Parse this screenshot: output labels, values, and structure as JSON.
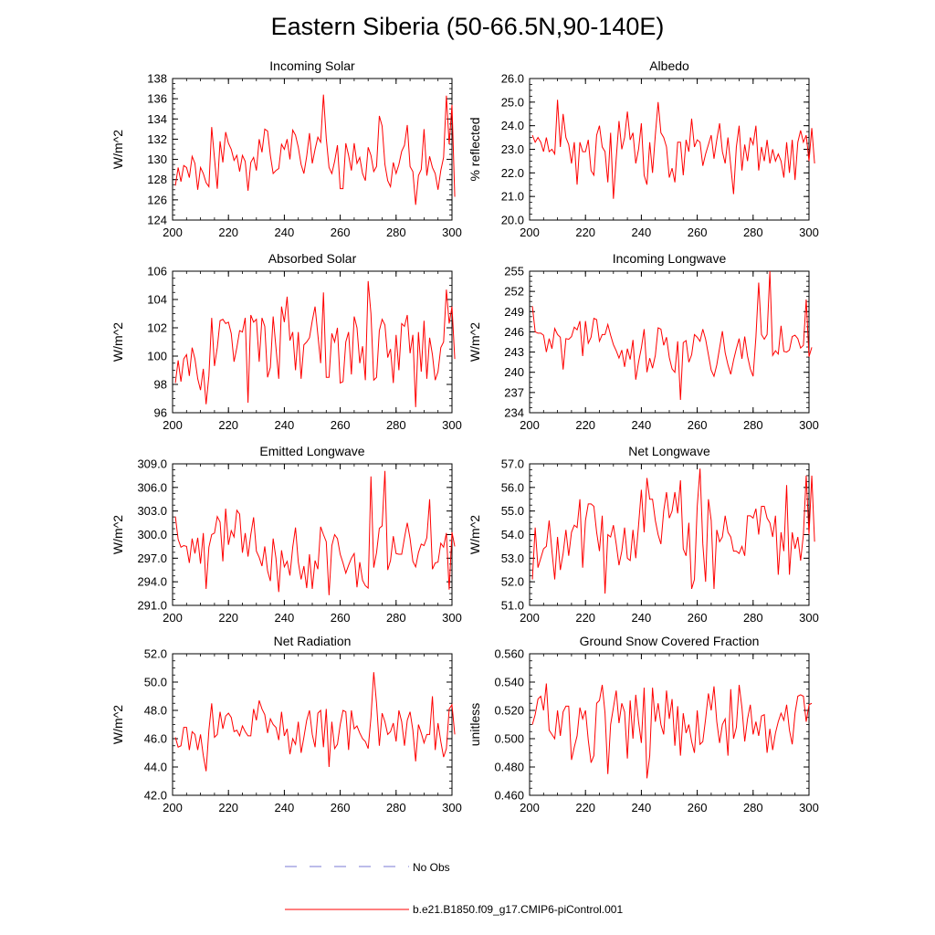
{
  "title": "Eastern Siberia (50-66.5N,90-140E)",
  "colors": {
    "model": "#ff0000",
    "obs": "#7a7ad6",
    "axis": "#000000"
  },
  "legend": {
    "obs_label": "No Obs",
    "model_label": "b.e21.B1850.f09_g17.CMIP6-piControl.001"
  },
  "chart_data": [
    {
      "type": "line",
      "title": "Incoming Solar",
      "ylabel": "W/m^2",
      "xlim": [
        200,
        300
      ],
      "xticks": [
        "200",
        "220",
        "240",
        "260",
        "280",
        "300"
      ],
      "ylim": [
        124,
        138
      ],
      "yticks": [
        "124",
        "126",
        "128",
        "130",
        "132",
        "134",
        "136",
        "138"
      ],
      "x_start": 201,
      "values": [
        127.4,
        129.2,
        127.8,
        129.4,
        129.2,
        128.2,
        130.3,
        129.6,
        127.0,
        129.2,
        128.6,
        127.7,
        127.3,
        133.2,
        130.1,
        127.1,
        131.8,
        129.7,
        132.7,
        131.6,
        131.0,
        129.9,
        130.4,
        128.8,
        130.4,
        129.8,
        126.9,
        129.7,
        130.2,
        128.9,
        132.0,
        130.7,
        133.0,
        132.8,
        130.4,
        128.6,
        128.9,
        129.1,
        131.5,
        131.0,
        132.0,
        130.0,
        132.9,
        132.4,
        131.2,
        129.5,
        128.6,
        130.3,
        132.6,
        129.6,
        131.0,
        132.2,
        131.7,
        136.4,
        132.1,
        129.2,
        128.6,
        129.8,
        131.4,
        127.1,
        127.1,
        131.6,
        130.4,
        128.9,
        131.6,
        129.6,
        130.2,
        128.6,
        127.9,
        131.2,
        130.4,
        128.8,
        129.3,
        134.3,
        133.3,
        129.5,
        127.9,
        127.3,
        129.7,
        128.6,
        129.5,
        130.8,
        131.4,
        133.4,
        129.3,
        128.8,
        125.5,
        128.4,
        129.0,
        133.0,
        128.4,
        130.3,
        129.2,
        128.6,
        127.0,
        128.9,
        130.2,
        136.3,
        131.5,
        135.4,
        126.3
      ]
    },
    {
      "type": "line",
      "title": "Albedo",
      "ylabel": "% reflected",
      "xlim": [
        200,
        300
      ],
      "xticks": [
        "200",
        "220",
        "240",
        "260",
        "280",
        "300"
      ],
      "ylim": [
        20.0,
        26.0
      ],
      "yticks": [
        "20.0",
        "21.0",
        "22.0",
        "23.0",
        "24.0",
        "25.0",
        "26.0"
      ],
      "x_start": 201,
      "values": [
        23.6,
        23.3,
        23.5,
        23.3,
        22.9,
        23.5,
        22.9,
        23.0,
        22.8,
        25.1,
        23.1,
        24.5,
        23.5,
        23.2,
        22.4,
        23.3,
        21.5,
        23.3,
        22.9,
        22.9,
        23.4,
        22.1,
        21.9,
        23.6,
        24.0,
        23.1,
        22.9,
        21.6,
        23.7,
        20.9,
        22.6,
        24.2,
        23.0,
        23.5,
        24.6,
        23.4,
        23.7,
        22.4,
        23.0,
        24.1,
        21.9,
        21.5,
        23.3,
        22.0,
        23.6,
        25.0,
        23.7,
        23.5,
        23.1,
        21.8,
        22.2,
        21.6,
        23.3,
        23.3,
        21.9,
        23.4,
        22.9,
        24.3,
        23.1,
        23.4,
        23.3,
        22.3,
        22.8,
        23.2,
        23.6,
        22.6,
        23.4,
        24.1,
        22.9,
        22.4,
        23.5,
        22.3,
        21.1,
        23.1,
        24.0,
        22.1,
        23.2,
        22.5,
        23.5,
        23.2,
        24.0,
        22.1,
        23.1,
        22.5,
        23.4,
        22.4,
        23.0,
        22.5,
        22.8,
        22.5,
        21.8,
        23.3,
        22.0,
        23.4,
        21.7,
        23.3,
        23.8,
        23.3,
        23.6,
        22.5,
        23.9,
        22.4
      ]
    },
    {
      "type": "line",
      "title": "Absorbed Solar",
      "ylabel": "W/m^2",
      "xlim": [
        200,
        300
      ],
      "xticks": [
        "200",
        "220",
        "240",
        "260",
        "280",
        "300"
      ],
      "ylim": [
        96,
        106
      ],
      "yticks": [
        "96",
        "98",
        "100",
        "102",
        "104",
        "106"
      ],
      "x_start": 201,
      "values": [
        98.1,
        99.7,
        98.2,
        99.8,
        100.1,
        98.6,
        100.6,
        99.8,
        98.4,
        97.6,
        99.1,
        96.6,
        98.6,
        102.7,
        99.3,
        100.6,
        102.5,
        102.6,
        102.3,
        102.4,
        101.6,
        99.6,
        100.6,
        101.8,
        101.7,
        102.7,
        96.7,
        102.9,
        102.4,
        102.6,
        99.6,
        102.7,
        102.1,
        98.5,
        99.2,
        102.8,
        100.6,
        98.4,
        103.5,
        102.4,
        104.2,
        101.1,
        101.7,
        99.0,
        101.7,
        98.4,
        100.8,
        101.0,
        101.3,
        102.5,
        103.5,
        101.5,
        99.5,
        104.5,
        98.5,
        98.5,
        101.6,
        101.0,
        102.0,
        98.1,
        98.2,
        101.0,
        101.7,
        98.7,
        102.8,
        102.0,
        99.5,
        100.7,
        98.3,
        105.3,
        103.0,
        98.3,
        98.5,
        101.8,
        102.6,
        102.2,
        99.9,
        100.5,
        98.1,
        101.5,
        99.0,
        102.3,
        102.1,
        102.9,
        100.2,
        101.5,
        96.4,
        101.7,
        98.9,
        102.5,
        98.4,
        101.3,
        100.1,
        98.3,
        98.9,
        100.6,
        101.0,
        104.7,
        102.3,
        103.5,
        99.8
      ]
    },
    {
      "type": "line",
      "title": "Incoming Longwave",
      "ylabel": "W/m^2",
      "xlim": [
        200,
        300
      ],
      "xticks": [
        "200",
        "220",
        "240",
        "260",
        "280",
        "300"
      ],
      "ylim": [
        234,
        255
      ],
      "yticks": [
        "234",
        "237",
        "240",
        "243",
        "246",
        "249",
        "252",
        "255"
      ],
      "x_start": 201,
      "values": [
        249.8,
        246.0,
        245.8,
        245.8,
        245.5,
        243.0,
        245.0,
        243.5,
        246.5,
        245.6,
        245.2,
        240.4,
        245.0,
        244.9,
        245.3,
        246.7,
        246.3,
        247.6,
        242.4,
        247.6,
        244.3,
        245.2,
        248.0,
        247.8,
        244.6,
        245.6,
        245.6,
        247.1,
        245.5,
        244.1,
        243.2,
        242.1,
        243.3,
        240.8,
        243.5,
        241.9,
        244.8,
        238.9,
        241.5,
        243.6,
        246.4,
        240.0,
        242.1,
        240.6,
        242.5,
        246.6,
        246.4,
        244.0,
        245.2,
        242.2,
        240.5,
        240.0,
        244.6,
        235.9,
        244.4,
        244.7,
        241.5,
        242.6,
        245.6,
        245.2,
        244.6,
        246.4,
        244.9,
        242.6,
        240.3,
        239.4,
        241.1,
        243.6,
        246.1,
        242.9,
        241.1,
        239.7,
        241.8,
        243.5,
        245.0,
        242.0,
        245.3,
        242.4,
        240.5,
        239.4,
        245.2,
        253.3,
        245.6,
        244.9,
        245.6,
        255.0,
        242.5,
        243.2,
        242.7,
        246.9,
        243.1,
        243.0,
        243.3,
        245.3,
        245.5,
        245.0,
        243.6,
        244.0,
        250.8,
        242.3,
        243.7
      ]
    },
    {
      "type": "line",
      "title": "Emitted Longwave",
      "ylabel": "W/m^2",
      "xlim": [
        200,
        300
      ],
      "xticks": [
        "200",
        "220",
        "240",
        "260",
        "280",
        "300"
      ],
      "ylim": [
        291.0,
        309.0
      ],
      "yticks": [
        "291.0",
        "294.0",
        "297.0",
        "300.0",
        "303.0",
        "306.0",
        "309.0"
      ],
      "x_start": 201,
      "values": [
        302.3,
        299.4,
        298.4,
        298.6,
        298.5,
        296.4,
        299.5,
        297.6,
        299.6,
        296.3,
        300.2,
        293.1,
        298.4,
        300.0,
        300.2,
        302.3,
        301.6,
        296.6,
        303.3,
        298.7,
        300.5,
        299.7,
        303.1,
        302.6,
        297.7,
        300.2,
        297.2,
        300.0,
        302.2,
        297.9,
        297.1,
        296.0,
        298.5,
        295.4,
        294.1,
        299.5,
        297.0,
        292.7,
        298.0,
        295.9,
        296.6,
        294.8,
        298.4,
        300.9,
        296.5,
        294.3,
        296.0,
        293.2,
        297.5,
        293.1,
        296.7,
        295.6,
        301.0,
        300.0,
        299.1,
        292.3,
        298.6,
        300.0,
        299.5,
        297.5,
        296.4,
        295.1,
        296.1,
        297.0,
        297.6,
        293.3,
        296.5,
        294.2,
        293.5,
        293.2,
        307.4,
        295.8,
        297.7,
        300.8,
        301.1,
        308.1,
        295.5,
        296.7,
        299.8,
        297.6,
        297.5,
        297.5,
        299.6,
        301.5,
        299.5,
        296.6,
        295.9,
        297.7,
        298.8,
        298.6,
        299.6,
        304.5,
        295.6,
        296.4,
        296.5,
        298.9,
        298.4,
        300.2,
        293.0,
        300.3,
        298.5
      ]
    },
    {
      "type": "line",
      "title": "Net Longwave",
      "ylabel": "W/m^2",
      "xlim": [
        200,
        300
      ],
      "xticks": [
        "200",
        "220",
        "240",
        "260",
        "280",
        "300"
      ],
      "ylim": [
        51.0,
        57.0
      ],
      "yticks": [
        "51.0",
        "52.0",
        "53.0",
        "54.0",
        "55.0",
        "56.0",
        "57.0"
      ],
      "x_start": 201,
      "values": [
        52.1,
        54.3,
        52.6,
        53.0,
        53.4,
        53.5,
        54.6,
        53.3,
        52.1,
        53.9,
        52.5,
        53.2,
        54.2,
        53.1,
        54.1,
        54.4,
        54.3,
        55.5,
        52.6,
        54.6,
        55.3,
        55.3,
        55.2,
        54.1,
        53.3,
        54.8,
        51.5,
        54.0,
        53.9,
        54.4,
        53.6,
        52.7,
        53.3,
        54.3,
        53.0,
        52.9,
        54.2,
        53.0,
        54.4,
        55.9,
        54.1,
        56.4,
        55.5,
        55.5,
        54.6,
        54.0,
        53.6,
        55.0,
        55.8,
        54.7,
        55.0,
        55.8,
        54.9,
        56.3,
        53.4,
        53.1,
        54.5,
        51.7,
        52.1,
        55.2,
        56.8,
        53.6,
        52.0,
        55.5,
        54.6,
        51.7,
        54.2,
        53.7,
        53.9,
        54.8,
        54.1,
        53.9,
        53.3,
        53.3,
        53.2,
        53.5,
        53.1,
        54.8,
        54.8,
        54.7,
        55.1,
        54.0,
        55.2,
        55.2,
        54.7,
        54.5,
        53.9,
        54.8,
        52.3,
        54.1,
        53.3,
        56.1,
        52.3,
        54.1,
        53.4,
        53.9,
        52.9,
        54.0,
        56.5,
        54.0,
        56.5,
        53.7
      ]
    },
    {
      "type": "line",
      "title": "Net Radiation",
      "ylabel": "W/m^2",
      "xlim": [
        200,
        300
      ],
      "xticks": [
        "200",
        "220",
        "240",
        "260",
        "280",
        "300"
      ],
      "ylim": [
        42.0,
        52.0
      ],
      "yticks": [
        "42.0",
        "44.0",
        "46.0",
        "48.0",
        "50.0",
        "52.0"
      ],
      "x_start": 201,
      "values": [
        46.1,
        45.4,
        45.5,
        46.8,
        46.8,
        45.2,
        46.5,
        46.3,
        45.2,
        46.3,
        44.8,
        43.7,
        46.6,
        48.5,
        46.1,
        46.3,
        47.9,
        46.7,
        47.6,
        47.8,
        47.5,
        46.5,
        46.6,
        46.2,
        46.9,
        46.5,
        46.2,
        46.2,
        48.1,
        47.3,
        48.7,
        48.1,
        47.7,
        46.4,
        47.4,
        47.0,
        46.8,
        45.9,
        47.9,
        46.2,
        46.7,
        44.9,
        46.0,
        45.6,
        47.2,
        45.0,
        46.1,
        47.3,
        48.0,
        46.3,
        45.4,
        47.8,
        48.0,
        45.4,
        48.1,
        44.0,
        47.2,
        45.3,
        45.6,
        47.0,
        48.0,
        47.9,
        45.2,
        48.0,
        46.7,
        46.9,
        46.4,
        46.0,
        45.8,
        45.3,
        47.5,
        50.7,
        48.5,
        45.5,
        47.8,
        47.2,
        46.3,
        46.5,
        47.1,
        45.8,
        48.0,
        47.2,
        45.5,
        47.3,
        47.9,
        46.6,
        44.4,
        47.0,
        46.4,
        45.7,
        46.3,
        46.3,
        49.0,
        45.2,
        47.1,
        45.8,
        44.7,
        45.3,
        48.1,
        48.4,
        46.3
      ]
    },
    {
      "type": "line",
      "title": "Ground Snow Covered Fraction",
      "ylabel": "unitless",
      "xlim": [
        200,
        300
      ],
      "xticks": [
        "200",
        "220",
        "240",
        "260",
        "280",
        "300"
      ],
      "ylim": [
        0.46,
        0.56
      ],
      "yticks": [
        "0.460",
        "0.480",
        "0.500",
        "0.520",
        "0.540",
        "0.560"
      ],
      "x_start": 201,
      "values": [
        0.51,
        0.517,
        0.528,
        0.53,
        0.52,
        0.539,
        0.506,
        0.503,
        0.5,
        0.52,
        0.502,
        0.519,
        0.523,
        0.523,
        0.485,
        0.494,
        0.502,
        0.522,
        0.514,
        0.52,
        0.499,
        0.483,
        0.488,
        0.525,
        0.527,
        0.538,
        0.518,
        0.475,
        0.51,
        0.522,
        0.534,
        0.511,
        0.525,
        0.519,
        0.486,
        0.527,
        0.5,
        0.531,
        0.512,
        0.497,
        0.536,
        0.472,
        0.488,
        0.536,
        0.512,
        0.525,
        0.51,
        0.503,
        0.534,
        0.514,
        0.528,
        0.495,
        0.523,
        0.488,
        0.518,
        0.504,
        0.51,
        0.498,
        0.49,
        0.52,
        0.496,
        0.498,
        0.514,
        0.532,
        0.52,
        0.537,
        0.512,
        0.497,
        0.51,
        0.514,
        0.488,
        0.535,
        0.5,
        0.508,
        0.538,
        0.522,
        0.498,
        0.514,
        0.524,
        0.503,
        0.512,
        0.502,
        0.516,
        0.517,
        0.49,
        0.507,
        0.492,
        0.504,
        0.512,
        0.518,
        0.513,
        0.524,
        0.506,
        0.496,
        0.518,
        0.53,
        0.531,
        0.53,
        0.512,
        0.524,
        0.525
      ]
    }
  ]
}
